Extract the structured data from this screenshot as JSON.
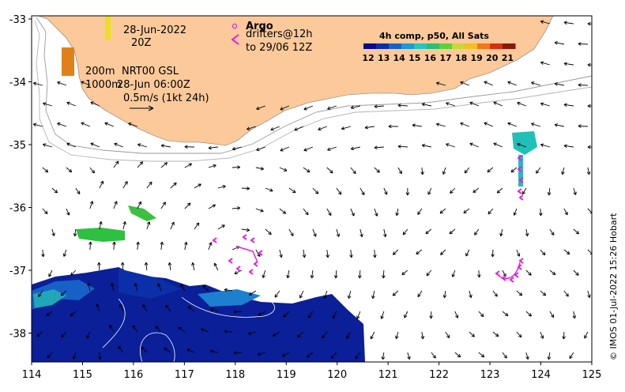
{
  "map": {
    "x_ticks": [
      "114",
      "115",
      "116",
      "117",
      "118",
      "119",
      "120",
      "121",
      "122",
      "123",
      "124",
      "125"
    ],
    "y_ticks": [
      "-33",
      "-34",
      "-35",
      "-36",
      "-37",
      "-38"
    ],
    "land_color": "#fcc99b",
    "water_color": "#ffffff",
    "vector_color": "#000000",
    "isobath_color": "#9a9a9a"
  },
  "labels": {
    "date": "28-Jun-2022",
    "hour": "20Z",
    "isobath_200": "200m",
    "isobath_1000": "1000m",
    "product": "NRT00 GSL",
    "product_time": "28-Jun 06:00Z",
    "scale_text": "0.5m/s (1kt 24h)",
    "argo": "Argo",
    "drifters": "drifters@12h",
    "drifters_to": "to 29/06 12Z",
    "credit": "© IMOS 01-Jul-2022 15:26 Hobart"
  },
  "colorbar": {
    "title": "4h comp, p50, All Sats",
    "ticks": [
      "12",
      "13",
      "14",
      "15",
      "16",
      "17",
      "18",
      "19",
      "20",
      "21"
    ],
    "colors": [
      "#0a0a8a",
      "#0b2fa8",
      "#1663c8",
      "#1a9ad8",
      "#20c8c0",
      "#28c070",
      "#5ed040",
      "#c8d838",
      "#f0c020",
      "#f07818",
      "#d83010",
      "#8a1808"
    ]
  },
  "drifter_color": "#e020e0"
}
